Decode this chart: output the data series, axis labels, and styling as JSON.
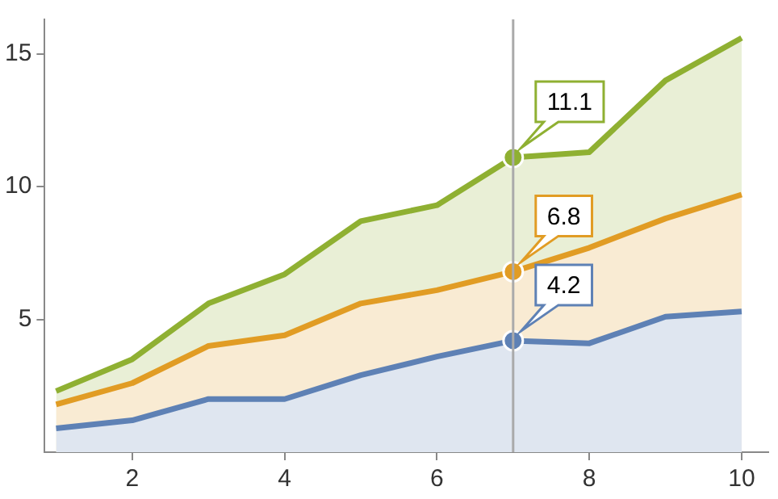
{
  "chart_data": {
    "type": "area",
    "x": [
      1,
      2,
      3,
      4,
      5,
      6,
      7,
      8,
      9,
      10
    ],
    "series": [
      {
        "color": "#5e81b5",
        "values": [
          0.9,
          1.2,
          2.0,
          2.0,
          2.9,
          3.6,
          4.2,
          4.1,
          5.1,
          5.3
        ],
        "value_labels": [
          null,
          null,
          null,
          null,
          null,
          null,
          "4.2",
          null,
          null,
          null
        ]
      },
      {
        "color": "#e19c24",
        "values": [
          1.8,
          2.6,
          4.0,
          4.4,
          5.6,
          6.1,
          6.8,
          7.7,
          8.8,
          9.7
        ],
        "value_labels": [
          null,
          null,
          null,
          null,
          null,
          null,
          "6.8",
          null,
          null,
          null
        ]
      },
      {
        "color": "#8fb032",
        "values": [
          2.3,
          3.5,
          5.6,
          6.7,
          8.7,
          9.3,
          11.1,
          11.3,
          14.0,
          15.6
        ],
        "value_labels": [
          null,
          null,
          null,
          null,
          null,
          null,
          "11.1",
          null,
          null,
          null
        ]
      }
    ],
    "xlim": [
      0.85,
      10.35
    ],
    "xticks": [
      2,
      4,
      6,
      8,
      10
    ],
    "ylim": [
      0,
      16.3
    ],
    "yticks": [
      5,
      10,
      15
    ],
    "ref_lines": [
      {
        "axis": "x",
        "value": 7,
        "color": "#aaaaaa"
      }
    ],
    "grid": false,
    "legend": false
  }
}
